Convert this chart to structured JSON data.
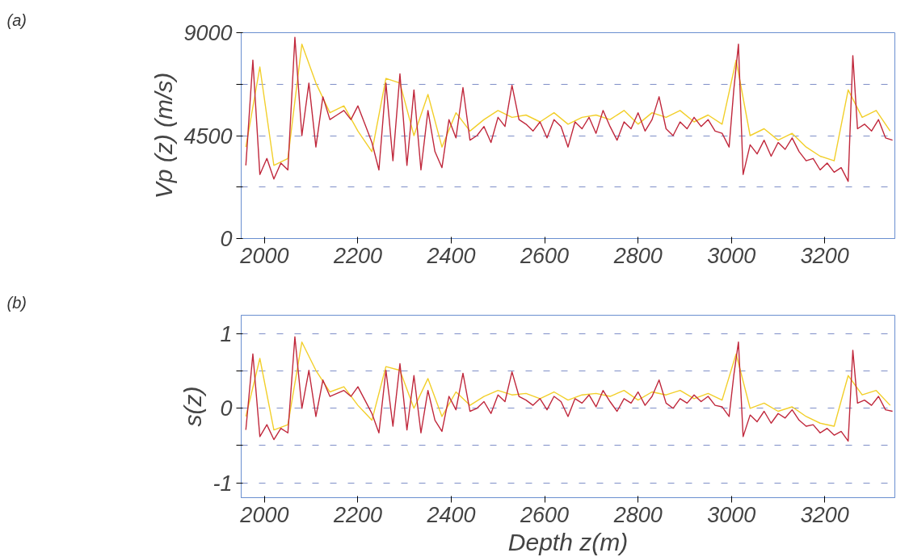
{
  "chart_data": [
    {
      "type": "line",
      "annotations": [
        "(a)"
      ],
      "ylabel": "Vp (z) (m/s)",
      "xlim": [
        1950,
        3350
      ],
      "xticks": [
        2000,
        2200,
        2400,
        2600,
        2800,
        3000,
        3200
      ],
      "ylim": [
        0,
        9000
      ],
      "yticks": [
        0,
        {
          "value": 2250,
          "label": null
        },
        4500,
        {
          "value": 6750,
          "label": null
        },
        9000
      ],
      "grid": "y",
      "line_style": "solid",
      "series": [
        {
          "color": "#f2cf2a",
          "x": [
            1960,
            1990,
            2020,
            2050,
            2080,
            2110,
            2140,
            2170,
            2200,
            2230,
            2260,
            2290,
            2320,
            2350,
            2380,
            2410,
            2440,
            2470,
            2500,
            2530,
            2560,
            2590,
            2620,
            2650,
            2680,
            2710,
            2740,
            2770,
            2800,
            2830,
            2860,
            2890,
            2920,
            2950,
            2980,
            3010,
            3040,
            3070,
            3100,
            3130,
            3160,
            3190,
            3220,
            3250,
            3280,
            3310,
            3340
          ],
          "values": [
            4000,
            7500,
            3200,
            3500,
            8500,
            6800,
            5500,
            5800,
            4700,
            3800,
            7000,
            6800,
            4500,
            6300,
            4000,
            5500,
            4700,
            5200,
            5600,
            5300,
            5400,
            5100,
            5500,
            5000,
            5300,
            5400,
            5200,
            5600,
            5000,
            5500,
            5300,
            5600,
            5100,
            5400,
            5000,
            7800,
            4500,
            4800,
            4300,
            4600,
            4000,
            3600,
            3400,
            6500,
            5300,
            5600,
            4700
          ]
        },
        {
          "color": "#c0283c",
          "x": [
            1960,
            1975,
            1990,
            2005,
            2020,
            2035,
            2050,
            2065,
            2080,
            2095,
            2110,
            2125,
            2140,
            2155,
            2170,
            2185,
            2200,
            2215,
            2230,
            2245,
            2260,
            2275,
            2290,
            2305,
            2320,
            2335,
            2350,
            2365,
            2380,
            2395,
            2410,
            2425,
            2440,
            2455,
            2470,
            2485,
            2500,
            2515,
            2530,
            2545,
            2560,
            2575,
            2590,
            2605,
            2620,
            2635,
            2650,
            2665,
            2680,
            2695,
            2710,
            2725,
            2740,
            2755,
            2770,
            2785,
            2800,
            2815,
            2830,
            2845,
            2860,
            2875,
            2890,
            2905,
            2920,
            2935,
            2950,
            2965,
            2980,
            2995,
            3005,
            3015,
            3025,
            3040,
            3055,
            3070,
            3085,
            3100,
            3115,
            3130,
            3145,
            3160,
            3175,
            3190,
            3205,
            3220,
            3235,
            3250,
            3260,
            3270,
            3285,
            3300,
            3315,
            3330,
            3345
          ],
          "values": [
            3200,
            7800,
            2800,
            3500,
            2600,
            3300,
            3000,
            8800,
            4500,
            6800,
            4000,
            6200,
            5200,
            5400,
            5600,
            5200,
            5800,
            5000,
            4200,
            3000,
            6800,
            3400,
            7200,
            3200,
            6500,
            3000,
            5600,
            3800,
            3100,
            5200,
            4400,
            6600,
            4300,
            4500,
            4900,
            4200,
            5300,
            4900,
            6700,
            5200,
            5000,
            4700,
            5100,
            4400,
            5200,
            4900,
            4000,
            5100,
            4800,
            5300,
            4600,
            5600,
            4900,
            4300,
            5100,
            4800,
            5500,
            4700,
            5200,
            6200,
            4800,
            4500,
            5100,
            4800,
            5300,
            4900,
            5200,
            4700,
            4600,
            4000,
            6500,
            8500,
            2800,
            4100,
            3700,
            4300,
            3600,
            4200,
            3900,
            4400,
            3800,
            3400,
            3500,
            3000,
            3300,
            2900,
            3100,
            2500,
            8000,
            4800,
            5000,
            4700,
            5200,
            4400,
            4300
          ]
        }
      ]
    },
    {
      "type": "line",
      "annotations": [
        "(b)"
      ],
      "ylabel": "s(z)",
      "xlabel": "Depth z(m)",
      "xlim": [
        1950,
        3350
      ],
      "xticks": [
        2000,
        2200,
        2400,
        2600,
        2800,
        3000,
        3200
      ],
      "ylim": [
        -1.2,
        1.25
      ],
      "yticks": [
        -1,
        {
          "value": -0.5,
          "label": null
        },
        0,
        {
          "value": 0.5,
          "label": null
        },
        1
      ],
      "grid": "y",
      "line_style": "solid",
      "series": [
        {
          "color": "#f2cf2a",
          "x": [
            1960,
            1990,
            2020,
            2050,
            2080,
            2110,
            2140,
            2170,
            2200,
            2230,
            2260,
            2290,
            2320,
            2350,
            2380,
            2410,
            2440,
            2470,
            2500,
            2530,
            2560,
            2590,
            2620,
            2650,
            2680,
            2710,
            2740,
            2770,
            2800,
            2830,
            2860,
            2890,
            2920,
            2950,
            2980,
            3010,
            3040,
            3070,
            3100,
            3130,
            3160,
            3190,
            3220,
            3250,
            3280,
            3310,
            3340
          ],
          "values": [
            -0.11,
            0.67,
            -0.29,
            -0.22,
            0.89,
            0.51,
            0.22,
            0.29,
            0.04,
            -0.16,
            0.56,
            0.51,
            0,
            0.4,
            -0.11,
            0.22,
            0.04,
            0.16,
            0.24,
            0.18,
            0.2,
            0.13,
            0.22,
            0.11,
            0.18,
            0.2,
            0.16,
            0.24,
            0.11,
            0.22,
            0.18,
            0.24,
            0.13,
            0.2,
            0.11,
            0.73,
            0,
            0.07,
            -0.04,
            0.02,
            -0.11,
            -0.2,
            -0.24,
            0.44,
            0.18,
            0.24,
            0.04
          ]
        },
        {
          "color": "#c0283c",
          "x": [
            1960,
            1975,
            1990,
            2005,
            2020,
            2035,
            2050,
            2065,
            2080,
            2095,
            2110,
            2125,
            2140,
            2155,
            2170,
            2185,
            2200,
            2215,
            2230,
            2245,
            2260,
            2275,
            2290,
            2305,
            2320,
            2335,
            2350,
            2365,
            2380,
            2395,
            2410,
            2425,
            2440,
            2455,
            2470,
            2485,
            2500,
            2515,
            2530,
            2545,
            2560,
            2575,
            2590,
            2605,
            2620,
            2635,
            2650,
            2665,
            2680,
            2695,
            2710,
            2725,
            2740,
            2755,
            2770,
            2785,
            2800,
            2815,
            2830,
            2845,
            2860,
            2875,
            2890,
            2905,
            2920,
            2935,
            2950,
            2965,
            2980,
            2995,
            3005,
            3015,
            3025,
            3040,
            3055,
            3070,
            3085,
            3100,
            3115,
            3130,
            3145,
            3160,
            3175,
            3190,
            3205,
            3220,
            3235,
            3250,
            3260,
            3270,
            3285,
            3300,
            3315,
            3330,
            3345
          ],
          "values": [
            -0.29,
            0.73,
            -0.38,
            -0.22,
            -0.42,
            -0.27,
            -0.33,
            0.96,
            0,
            0.51,
            -0.11,
            0.38,
            0.16,
            0.2,
            0.24,
            0.16,
            0.29,
            0.11,
            -0.07,
            -0.33,
            0.51,
            -0.24,
            0.6,
            -0.29,
            0.44,
            -0.33,
            0.24,
            -0.16,
            -0.31,
            0.16,
            -0.02,
            0.47,
            -0.04,
            0,
            0.09,
            -0.07,
            0.18,
            0.09,
            0.49,
            0.16,
            0.11,
            0.04,
            0.13,
            -0.02,
            0.16,
            0.09,
            -0.11,
            0.13,
            0.07,
            0.18,
            0.02,
            0.24,
            0.09,
            -0.04,
            0.13,
            0.07,
            0.22,
            0.04,
            0.16,
            0.38,
            0.07,
            0,
            0.13,
            0.07,
            0.18,
            0.09,
            0.16,
            0.04,
            0.02,
            -0.11,
            0.44,
            0.89,
            -0.38,
            -0.09,
            -0.18,
            -0.04,
            -0.2,
            -0.07,
            -0.13,
            -0.02,
            -0.16,
            -0.24,
            -0.22,
            -0.33,
            -0.27,
            -0.36,
            -0.31,
            -0.44,
            0.78,
            0.07,
            0.11,
            0.04,
            0.16,
            -0.02,
            -0.04
          ]
        }
      ]
    }
  ]
}
